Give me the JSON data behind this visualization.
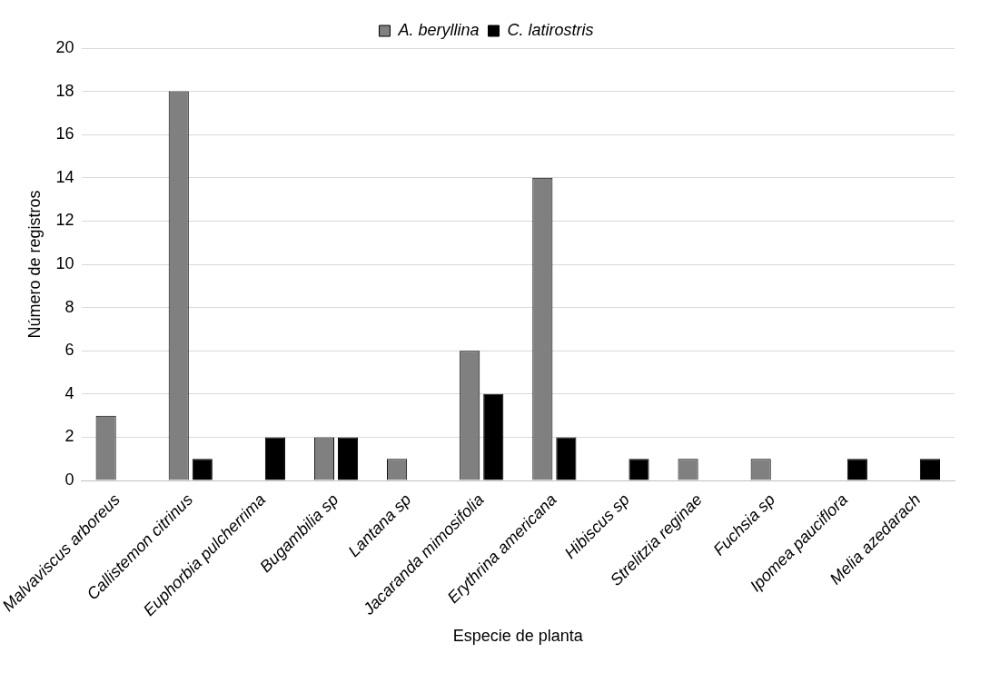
{
  "chart_data": {
    "type": "bar",
    "xlabel": "Especie de planta",
    "ylabel": "Número de registros",
    "categories": [
      "Malvaviscus arboreus",
      "Callistemon citrinus",
      "Euphorbia pulcherrima",
      "Bugambilia sp",
      "Lantana sp",
      "Jacaranda mimosifolia",
      "Erythrina americana",
      "Hibiscus sp",
      "Strelitzia reginae",
      "Fuchsia sp",
      "Ipomea pauciflora",
      "Melia azedarach"
    ],
    "series": [
      {
        "name": "A. beryllina",
        "color": "#808080",
        "values": [
          3,
          18,
          null,
          2,
          1,
          6,
          14,
          null,
          1,
          1,
          null,
          null
        ]
      },
      {
        "name": "C. latirostris",
        "color": "#000000",
        "values": [
          null,
          1,
          2,
          2,
          null,
          4,
          2,
          1,
          null,
          null,
          1,
          1
        ]
      }
    ],
    "ylim": [
      0,
      20
    ],
    "yticks": [
      0,
      2,
      4,
      6,
      8,
      10,
      12,
      14,
      16,
      18,
      20
    ],
    "grid": "y",
    "legend": "top"
  }
}
